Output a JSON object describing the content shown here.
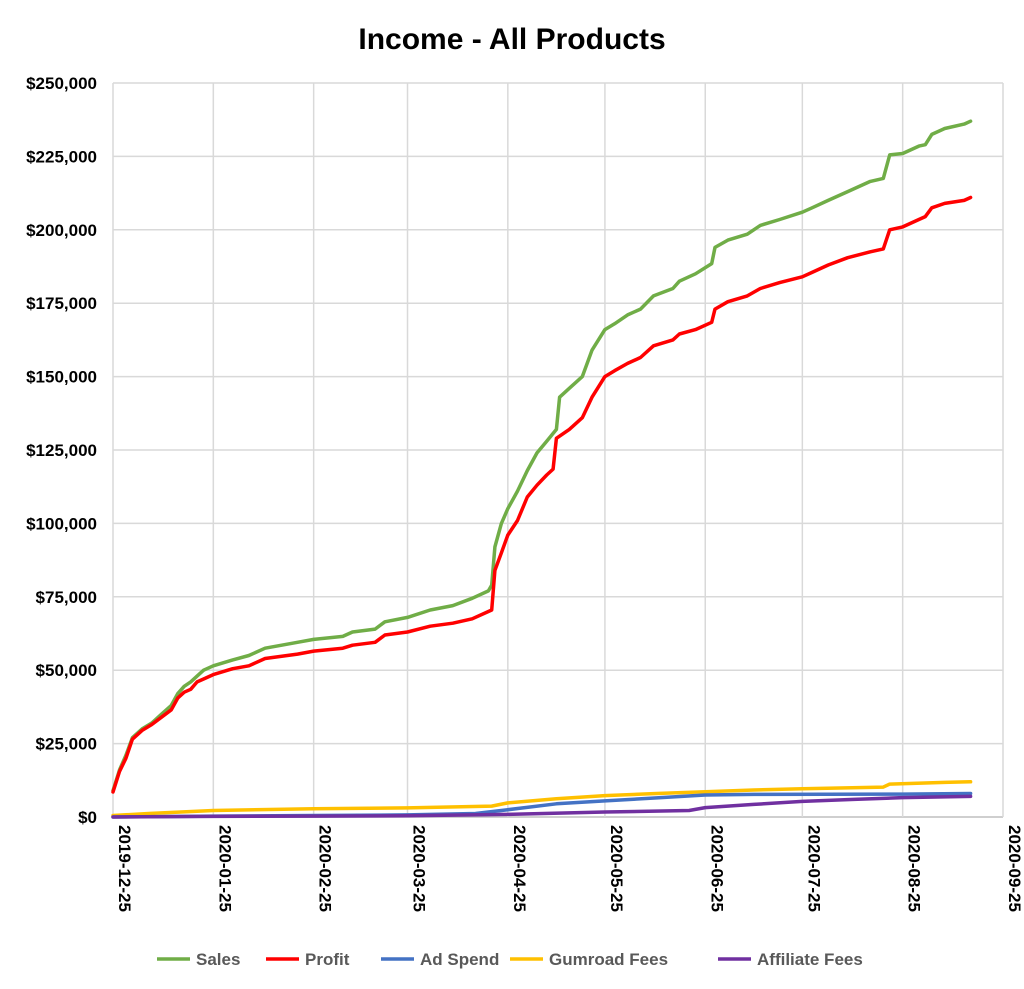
{
  "chart_data": {
    "type": "line",
    "title": "Income - All Products",
    "xlabel": "",
    "ylabel": "",
    "x_axis": {
      "type": "date",
      "range": [
        "2019-12-25",
        "2020-09-25"
      ],
      "ticks": [
        "2019-12-25",
        "2020-01-25",
        "2020-02-25",
        "2020-03-25",
        "2020-04-25",
        "2020-05-25",
        "2020-06-25",
        "2020-07-25",
        "2020-08-25",
        "2020-09-25"
      ]
    },
    "y_axis": {
      "ylim": [
        0,
        250000
      ],
      "ticks": [
        0,
        25000,
        50000,
        75000,
        100000,
        125000,
        150000,
        175000,
        200000,
        225000,
        250000
      ],
      "tick_labels": [
        "$0",
        "$25,000",
        "$50,000",
        "$75,000",
        "$100,000",
        "$125,000",
        "$150,000",
        "$175,000",
        "$200,000",
        "$225,000",
        "$250,000"
      ]
    },
    "grid": true,
    "legend_position": "bottom",
    "series": [
      {
        "name": "Sales",
        "color": "#70ad47",
        "points": [
          [
            "2019-12-25",
            9000
          ],
          [
            "2019-12-27",
            16000
          ],
          [
            "2019-12-29",
            21000
          ],
          [
            "2019-12-31",
            27000
          ],
          [
            "2020-01-03",
            30000
          ],
          [
            "2020-01-06",
            32000
          ],
          [
            "2020-01-09",
            35000
          ],
          [
            "2020-01-12",
            38000
          ],
          [
            "2020-01-14",
            42000
          ],
          [
            "2020-01-16",
            44500
          ],
          [
            "2020-01-18",
            46000
          ],
          [
            "2020-01-20",
            48000
          ],
          [
            "2020-01-22",
            50000
          ],
          [
            "2020-01-25",
            51500
          ],
          [
            "2020-01-31",
            53500
          ],
          [
            "2020-02-05",
            55000
          ],
          [
            "2020-02-10",
            57500
          ],
          [
            "2020-02-20",
            59500
          ],
          [
            "2020-02-25",
            60500
          ],
          [
            "2020-03-05",
            61500
          ],
          [
            "2020-03-08",
            63000
          ],
          [
            "2020-03-15",
            64000
          ],
          [
            "2020-03-18",
            66500
          ],
          [
            "2020-03-25",
            68000
          ],
          [
            "2020-04-01",
            70500
          ],
          [
            "2020-04-08",
            72000
          ],
          [
            "2020-04-14",
            74500
          ],
          [
            "2020-04-19",
            77000
          ],
          [
            "2020-04-20",
            79000
          ],
          [
            "2020-04-21",
            92000
          ],
          [
            "2020-04-23",
            100000
          ],
          [
            "2020-04-25",
            105000
          ],
          [
            "2020-04-28",
            111000
          ],
          [
            "2020-05-01",
            118000
          ],
          [
            "2020-05-04",
            124000
          ],
          [
            "2020-05-07",
            128000
          ],
          [
            "2020-05-10",
            132000
          ],
          [
            "2020-05-11",
            143000
          ],
          [
            "2020-05-14",
            146000
          ],
          [
            "2020-05-18",
            150000
          ],
          [
            "2020-05-21",
            159000
          ],
          [
            "2020-05-25",
            166000
          ],
          [
            "2020-05-28",
            168000
          ],
          [
            "2020-06-01",
            171000
          ],
          [
            "2020-06-05",
            173000
          ],
          [
            "2020-06-09",
            177500
          ],
          [
            "2020-06-15",
            180000
          ],
          [
            "2020-06-17",
            182500
          ],
          [
            "2020-06-22",
            185000
          ],
          [
            "2020-06-27",
            188500
          ],
          [
            "2020-06-28",
            194000
          ],
          [
            "2020-07-02",
            196500
          ],
          [
            "2020-07-08",
            198500
          ],
          [
            "2020-07-12",
            201500
          ],
          [
            "2020-07-18",
            203500
          ],
          [
            "2020-07-25",
            206000
          ],
          [
            "2020-07-28",
            207500
          ],
          [
            "2020-08-02",
            210000
          ],
          [
            "2020-08-08",
            213000
          ],
          [
            "2020-08-15",
            216500
          ],
          [
            "2020-08-19",
            217500
          ],
          [
            "2020-08-21",
            225500
          ],
          [
            "2020-08-25",
            226000
          ],
          [
            "2020-08-30",
            228500
          ],
          [
            "2020-09-01",
            229000
          ],
          [
            "2020-09-03",
            232500
          ],
          [
            "2020-09-07",
            234500
          ],
          [
            "2020-09-13",
            236000
          ],
          [
            "2020-09-15",
            237000
          ]
        ]
      },
      {
        "name": "Profit",
        "color": "#ff0000",
        "points": [
          [
            "2019-12-25",
            8500
          ],
          [
            "2019-12-27",
            15500
          ],
          [
            "2019-12-29",
            20000
          ],
          [
            "2019-12-31",
            26500
          ],
          [
            "2020-01-03",
            29500
          ],
          [
            "2020-01-06",
            31500
          ],
          [
            "2020-01-09",
            34000
          ],
          [
            "2020-01-12",
            36500
          ],
          [
            "2020-01-14",
            40500
          ],
          [
            "2020-01-16",
            42500
          ],
          [
            "2020-01-18",
            43500
          ],
          [
            "2020-01-20",
            46000
          ],
          [
            "2020-01-22",
            47000
          ],
          [
            "2020-01-25",
            48500
          ],
          [
            "2020-01-31",
            50500
          ],
          [
            "2020-02-05",
            51500
          ],
          [
            "2020-02-10",
            54000
          ],
          [
            "2020-02-20",
            55500
          ],
          [
            "2020-02-25",
            56500
          ],
          [
            "2020-03-05",
            57500
          ],
          [
            "2020-03-08",
            58500
          ],
          [
            "2020-03-15",
            59500
          ],
          [
            "2020-03-18",
            62000
          ],
          [
            "2020-03-25",
            63000
          ],
          [
            "2020-04-01",
            65000
          ],
          [
            "2020-04-08",
            66000
          ],
          [
            "2020-04-14",
            67500
          ],
          [
            "2020-04-19",
            70000
          ],
          [
            "2020-04-20",
            70500
          ],
          [
            "2020-04-21",
            84000
          ],
          [
            "2020-04-23",
            90000
          ],
          [
            "2020-04-25",
            96000
          ],
          [
            "2020-04-28",
            101000
          ],
          [
            "2020-05-01",
            109000
          ],
          [
            "2020-05-04",
            113000
          ],
          [
            "2020-05-07",
            116500
          ],
          [
            "2020-05-09",
            118500
          ],
          [
            "2020-05-10",
            129000
          ],
          [
            "2020-05-14",
            132000
          ],
          [
            "2020-05-18",
            136000
          ],
          [
            "2020-05-21",
            143000
          ],
          [
            "2020-05-25",
            150000
          ],
          [
            "2020-05-28",
            152000
          ],
          [
            "2020-06-01",
            154500
          ],
          [
            "2020-06-05",
            156500
          ],
          [
            "2020-06-09",
            160500
          ],
          [
            "2020-06-15",
            162500
          ],
          [
            "2020-06-17",
            164500
          ],
          [
            "2020-06-22",
            166000
          ],
          [
            "2020-06-27",
            168500
          ],
          [
            "2020-06-28",
            173000
          ],
          [
            "2020-07-02",
            175500
          ],
          [
            "2020-07-08",
            177500
          ],
          [
            "2020-07-12",
            180000
          ],
          [
            "2020-07-18",
            182000
          ],
          [
            "2020-07-25",
            184000
          ],
          [
            "2020-07-28",
            185500
          ],
          [
            "2020-08-02",
            188000
          ],
          [
            "2020-08-08",
            190500
          ],
          [
            "2020-08-15",
            192500
          ],
          [
            "2020-08-19",
            193500
          ],
          [
            "2020-08-21",
            200000
          ],
          [
            "2020-08-25",
            201000
          ],
          [
            "2020-08-30",
            203500
          ],
          [
            "2020-09-01",
            204500
          ],
          [
            "2020-09-03",
            207500
          ],
          [
            "2020-09-07",
            209000
          ],
          [
            "2020-09-13",
            210000
          ],
          [
            "2020-09-15",
            211000
          ]
        ]
      },
      {
        "name": "Ad Spend",
        "color": "#4472c4",
        "points": [
          [
            "2019-12-25",
            0
          ],
          [
            "2020-01-25",
            300
          ],
          [
            "2020-02-25",
            500
          ],
          [
            "2020-03-25",
            700
          ],
          [
            "2020-04-15",
            1200
          ],
          [
            "2020-04-25",
            2500
          ],
          [
            "2020-05-10",
            4500
          ],
          [
            "2020-05-25",
            5500
          ],
          [
            "2020-06-10",
            6500
          ],
          [
            "2020-06-25",
            7500
          ],
          [
            "2020-07-10",
            7700
          ],
          [
            "2020-08-25",
            7800
          ],
          [
            "2020-09-15",
            8000
          ]
        ]
      },
      {
        "name": "Gumroad Fees",
        "color": "#ffc000",
        "points": [
          [
            "2019-12-25",
            500
          ],
          [
            "2020-01-05",
            1200
          ],
          [
            "2020-01-25",
            2200
          ],
          [
            "2020-02-25",
            2800
          ],
          [
            "2020-03-25",
            3100
          ],
          [
            "2020-04-20",
            3700
          ],
          [
            "2020-04-25",
            4800
          ],
          [
            "2020-05-10",
            6200
          ],
          [
            "2020-05-25",
            7300
          ],
          [
            "2020-06-10",
            8000
          ],
          [
            "2020-06-25",
            8600
          ],
          [
            "2020-07-10",
            9200
          ],
          [
            "2020-07-25",
            9600
          ],
          [
            "2020-08-19",
            10200
          ],
          [
            "2020-08-21",
            11200
          ],
          [
            "2020-09-07",
            11800
          ],
          [
            "2020-09-15",
            12000
          ]
        ]
      },
      {
        "name": "Affiliate Fees",
        "color": "#7030a0",
        "points": [
          [
            "2019-12-25",
            0
          ],
          [
            "2020-01-25",
            200
          ],
          [
            "2020-02-25",
            300
          ],
          [
            "2020-03-25",
            400
          ],
          [
            "2020-04-25",
            900
          ],
          [
            "2020-05-25",
            1700
          ],
          [
            "2020-06-20",
            2200
          ],
          [
            "2020-06-25",
            3200
          ],
          [
            "2020-07-10",
            4300
          ],
          [
            "2020-07-25",
            5300
          ],
          [
            "2020-08-10",
            6000
          ],
          [
            "2020-08-25",
            6600
          ],
          [
            "2020-09-15",
            7000
          ]
        ]
      }
    ]
  }
}
